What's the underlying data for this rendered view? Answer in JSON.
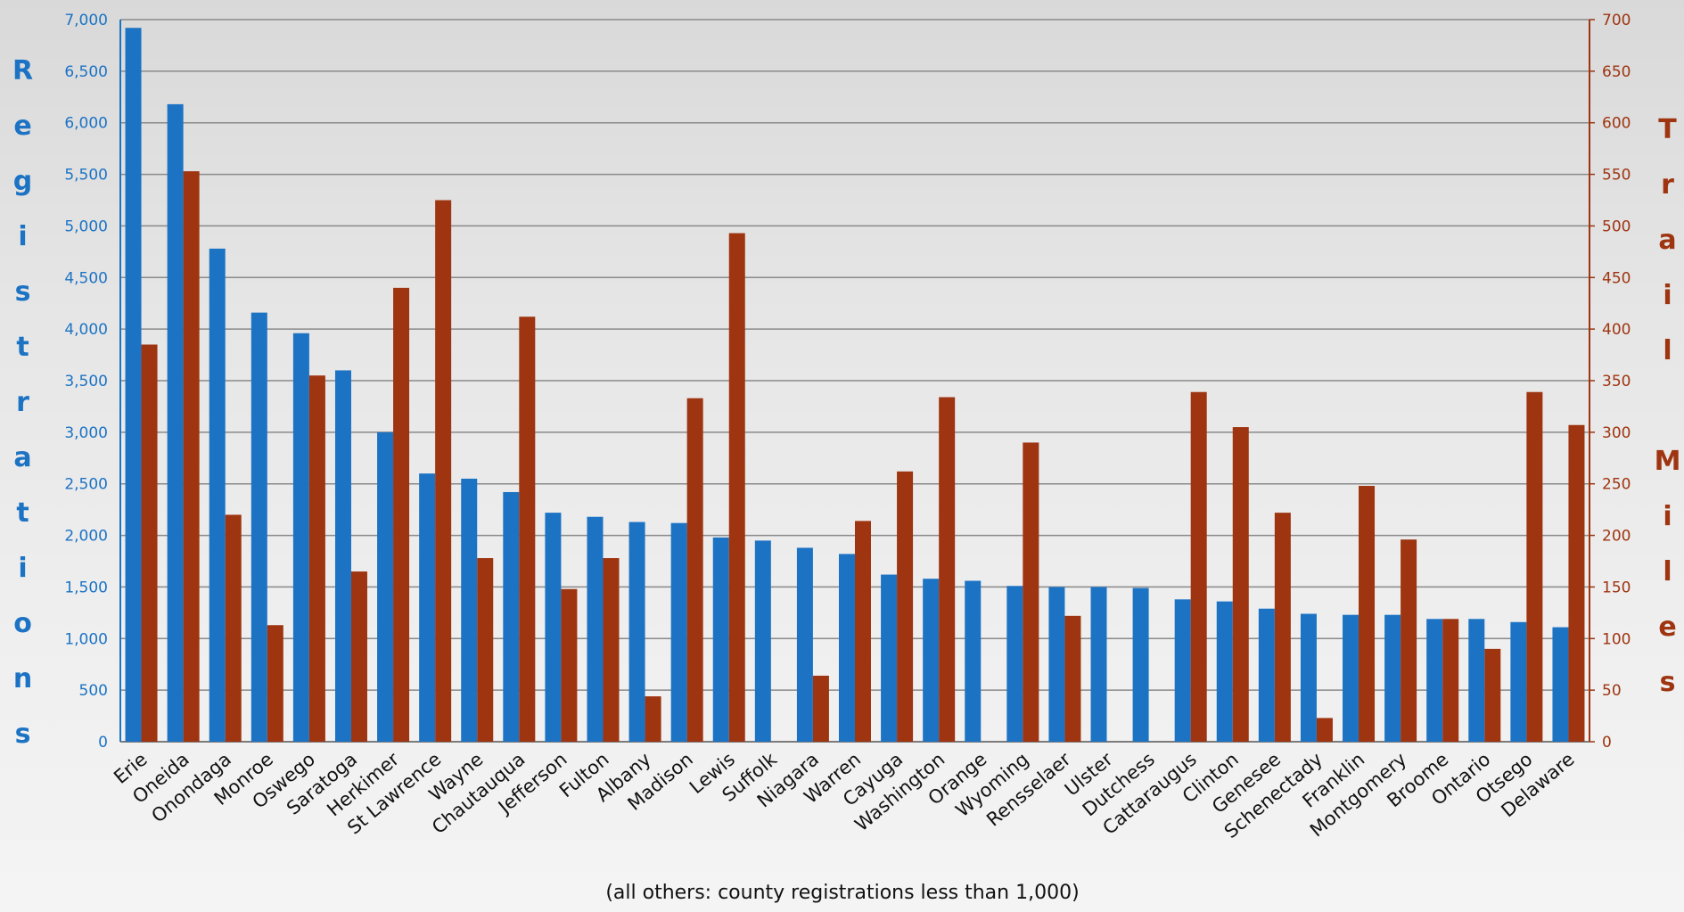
{
  "chart_data": {
    "type": "bar",
    "y_label": "Registrations",
    "y2_label": "Trail Miles",
    "note": "(all others: county registrations less than 1,000)",
    "categories": [
      "Erie",
      "Oneida",
      "Onondaga",
      "Monroe",
      "Oswego",
      "Saratoga",
      "Herkimer",
      "St Lawrence",
      "Wayne",
      "Chautauqua",
      "Jefferson",
      "Fulton",
      "Albany",
      "Madison",
      "Lewis",
      "Suffolk",
      "Niagara",
      "Warren",
      "Cayuga",
      "Washington",
      "Orange",
      "Wyoming",
      "Rensselaer",
      "Ulster",
      "Dutchess",
      "Cattaraugus",
      "Clinton",
      "Genesee",
      "Schenectady",
      "Franklin",
      "Montgomery",
      "Broome",
      "Ontario",
      "Otsego",
      "Delaware"
    ],
    "series": [
      {
        "color": "#1c73c4",
        "values": [
          6920,
          6180,
          4780,
          4160,
          3960,
          3600,
          3000,
          2600,
          2550,
          2420,
          2220,
          2180,
          2130,
          2120,
          1980,
          1950,
          1880,
          1820,
          1620,
          1580,
          1560,
          1510,
          1500,
          1500,
          1490,
          1380,
          1360,
          1290,
          1240,
          1230,
          1230,
          1190,
          1190,
          1160,
          1110
        ]
      },
      {
        "color": "#9e3410",
        "axis": "y2",
        "values": [
          385,
          553,
          220,
          113,
          355,
          165,
          440,
          525,
          178,
          412,
          148,
          178,
          44,
          333,
          493,
          null,
          64,
          214,
          262,
          334,
          null,
          290,
          122,
          null,
          null,
          339,
          305,
          222,
          23,
          248,
          196,
          119,
          90,
          339,
          307
        ]
      }
    ],
    "ylim": [
      0,
      7000
    ],
    "yticks": [
      0,
      500,
      {
        "value": 1000,
        "label": "1,000"
      },
      {
        "value": 1500,
        "label": "1,500"
      },
      {
        "value": 2000,
        "label": "2,000"
      },
      {
        "value": 2500,
        "label": "2,500"
      },
      {
        "value": 3000,
        "label": "3,000"
      },
      {
        "value": 3500,
        "label": "3,500"
      },
      {
        "value": 4000,
        "label": "4,000"
      },
      {
        "value": 4500,
        "label": "4,500"
      },
      {
        "value": 5000,
        "label": "5,000"
      },
      {
        "value": 5500,
        "label": "5,500"
      },
      {
        "value": 6000,
        "label": "6,000"
      },
      {
        "value": 6500,
        "label": "6,500"
      },
      {
        "value": 7000,
        "label": "7,000"
      }
    ],
    "y2lim": [
      0,
      700
    ],
    "y2ticks": [
      0,
      50,
      100,
      150,
      200,
      250,
      300,
      350,
      400,
      450,
      500,
      550,
      600,
      650,
      700
    ],
    "grid": true
  }
}
